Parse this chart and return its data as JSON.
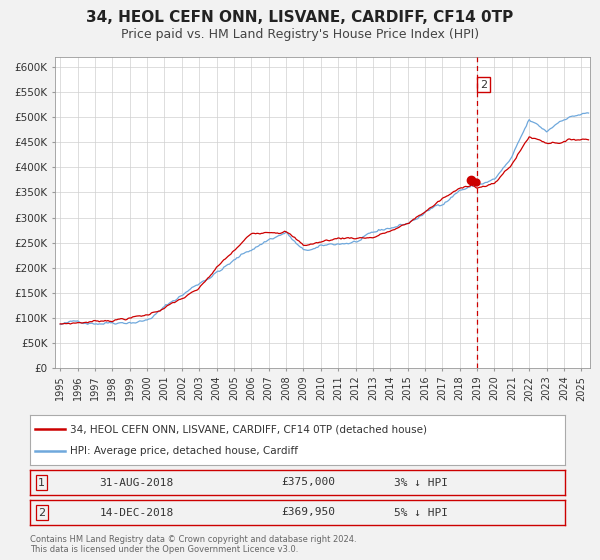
{
  "title": "34, HEOL CEFN ONN, LISVANE, CARDIFF, CF14 0TP",
  "subtitle": "Price paid vs. HM Land Registry's House Price Index (HPI)",
  "ylim": [
    0,
    620000
  ],
  "ytick_values": [
    0,
    50000,
    100000,
    150000,
    200000,
    250000,
    300000,
    350000,
    400000,
    450000,
    500000,
    550000,
    600000
  ],
  "ytick_labels": [
    "£0",
    "£50K",
    "£100K",
    "£150K",
    "£200K",
    "£250K",
    "£300K",
    "£350K",
    "£400K",
    "£450K",
    "£500K",
    "£550K",
    "£600K"
  ],
  "xlim_start": 1994.7,
  "xlim_end": 2025.5,
  "xtick_years": [
    1995,
    1996,
    1997,
    1998,
    1999,
    2000,
    2001,
    2002,
    2003,
    2004,
    2005,
    2006,
    2007,
    2008,
    2009,
    2010,
    2011,
    2012,
    2013,
    2014,
    2015,
    2016,
    2017,
    2018,
    2019,
    2020,
    2021,
    2022,
    2023,
    2024,
    2025
  ],
  "hpi_color": "#6fa8dc",
  "house_color": "#cc0000",
  "marker_color": "#cc0000",
  "vline_color": "#cc0000",
  "vline_x": 2019.0,
  "annotation_label": "2",
  "point1_x": 2018.667,
  "point1_y": 375000,
  "point2_x": 2018.958,
  "point2_y": 369950,
  "legend_label_house": "34, HEOL CEFN ONN, LISVANE, CARDIFF, CF14 0TP (detached house)",
  "legend_label_hpi": "HPI: Average price, detached house, Cardiff",
  "table_row1_num": "1",
  "table_row1_date": "31-AUG-2018",
  "table_row1_price": "£375,000",
  "table_row1_hpi": "3% ↓ HPI",
  "table_row2_num": "2",
  "table_row2_date": "14-DEC-2018",
  "table_row2_price": "£369,950",
  "table_row2_hpi": "5% ↓ HPI",
  "footer_text": "Contains HM Land Registry data © Crown copyright and database right 2024.\nThis data is licensed under the Open Government Licence v3.0.",
  "background_color": "#f2f2f2",
  "plot_bg_color": "#ffffff",
  "grid_color": "#d0d0d0",
  "title_fontsize": 11,
  "subtitle_fontsize": 9
}
